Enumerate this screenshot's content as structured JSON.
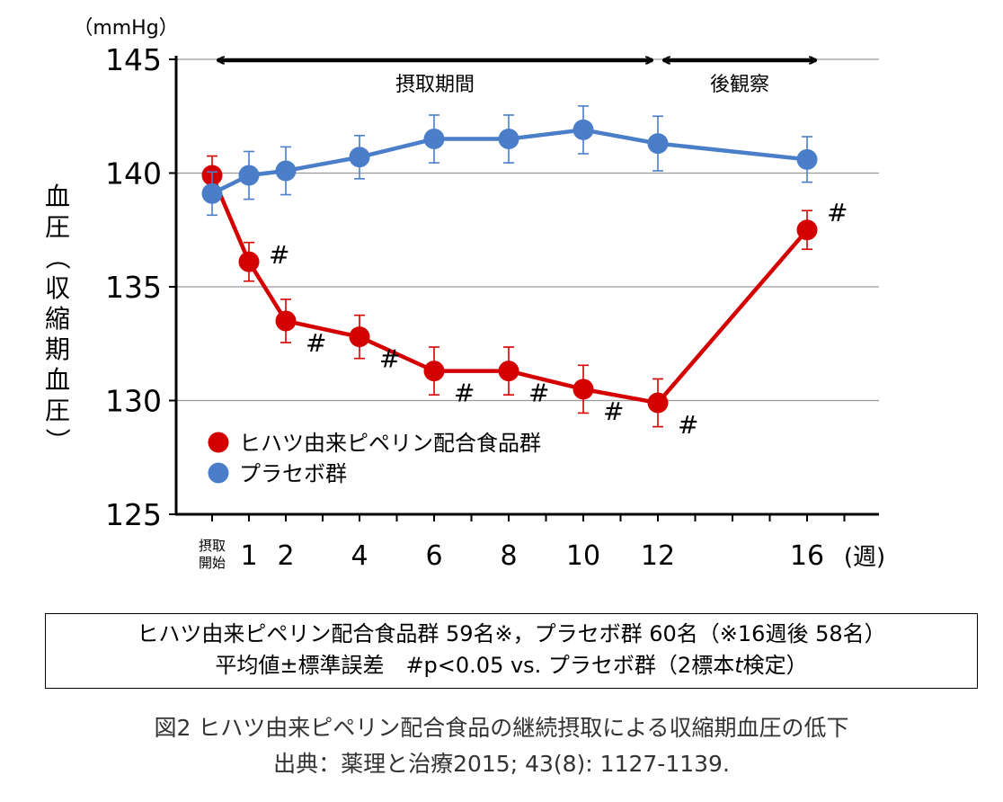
{
  "chart_data": {
    "type": "line",
    "unit_label": "（mmHg）",
    "ylabel": "血圧（収縮期血圧）",
    "ylim": [
      125,
      145
    ],
    "yticks": [
      "125",
      "130",
      "135",
      "140",
      "145"
    ],
    "x_start_label": [
      "摂取",
      "開始"
    ],
    "x_tick_labels": [
      "1",
      "2",
      "4",
      "6",
      "8",
      "10",
      "12",
      "16"
    ],
    "x_unit_label": "(週)",
    "periods": [
      {
        "label": "摂取期間",
        "from_week": 0,
        "to_week": 12
      },
      {
        "label": "後観察",
        "from_week": 12,
        "to_week": 16
      }
    ],
    "significance_marker": "#",
    "series": [
      {
        "name": "ヒハツ由来ピペリン配合食品群",
        "color": "#d40000",
        "x": [
          0,
          1,
          2,
          4,
          6,
          8,
          10,
          12,
          16
        ],
        "values": [
          139.9,
          136.1,
          133.5,
          132.8,
          131.3,
          131.3,
          130.5,
          129.9,
          137.5
        ],
        "error": [
          0.85,
          0.85,
          0.95,
          0.95,
          1.05,
          1.05,
          1.05,
          1.05,
          0.85
        ],
        "significant": [
          false,
          true,
          true,
          true,
          true,
          true,
          true,
          true,
          true
        ]
      },
      {
        "name": "プラセボ群",
        "color": "#4a7ec8",
        "x": [
          0,
          1,
          2,
          4,
          6,
          8,
          10,
          12,
          16
        ],
        "values": [
          139.1,
          139.9,
          140.1,
          140.7,
          141.5,
          141.5,
          141.9,
          141.3,
          140.6
        ],
        "error": [
          0.95,
          1.05,
          1.05,
          0.95,
          1.05,
          1.05,
          1.05,
          1.2,
          1.0
        ]
      }
    ]
  },
  "note": {
    "line1": "ヒハツ由来ピペリン配合食品群 59名※，プラセボ群 60名（※16週後 58名）",
    "line2_prefix": "平均値±標準誤差　#p<0.05  vs. プラセボ群（2標本",
    "line2_italic": "t",
    "line2_suffix": "検定）"
  },
  "caption": {
    "title": "図2  ヒハツ由来ピペリン配合食品の継続摂取による収縮期血圧の低下",
    "source": "出典：薬理と治療2015; 43(8): 1127-1139."
  }
}
